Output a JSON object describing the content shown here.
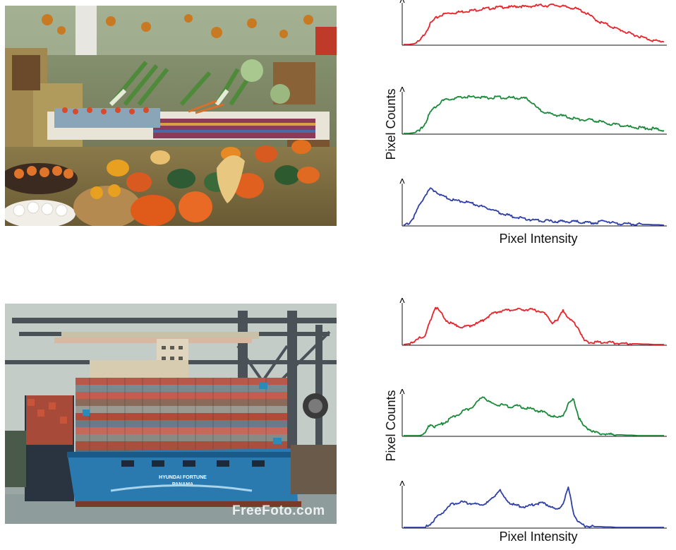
{
  "photos": [
    {
      "subject": "market-stall-produce",
      "watermark": ""
    },
    {
      "subject": "container-ship-port",
      "watermark": "FreeFoto.com",
      "ship_name": "HYUNDAI FORTUNE",
      "ship_port": "PANAMA"
    }
  ],
  "chart_data": [
    {
      "type": "line",
      "title": "",
      "xlabel": "Pixel Intensity",
      "ylabel": "Pixel Counts",
      "xlim": [
        0,
        255
      ],
      "ylim": [
        0,
        1
      ],
      "grid": false,
      "ticks": false,
      "series": [
        {
          "color": "#e8232a",
          "values": [
            0,
            0,
            0.02,
            0.08,
            0.28,
            0.52,
            0.66,
            0.74,
            0.78,
            0.8,
            0.81,
            0.83,
            0.85,
            0.86,
            0.88,
            0.9,
            0.91,
            0.93,
            0.94,
            0.95,
            0.94,
            0.96,
            0.97,
            0.95,
            0.97,
            0.98,
            0.99,
            0.98,
            1.0,
            0.99,
            0.96,
            0.94,
            0.92,
            0.88,
            0.82,
            0.74,
            0.64,
            0.56,
            0.52,
            0.46,
            0.4,
            0.36,
            0.3,
            0.26,
            0.22,
            0.18,
            0.14,
            0.1,
            0.08,
            0.08
          ]
        },
        {
          "color": "#1a8a3a",
          "values": [
            0,
            0,
            0.02,
            0.06,
            0.25,
            0.52,
            0.68,
            0.8,
            0.85,
            0.88,
            0.9,
            0.92,
            0.93,
            0.92,
            0.93,
            0.91,
            0.9,
            0.91,
            0.92,
            0.9,
            0.91,
            0.9,
            0.89,
            0.88,
            0.8,
            0.66,
            0.56,
            0.52,
            0.48,
            0.46,
            0.44,
            0.41,
            0.38,
            0.36,
            0.34,
            0.34,
            0.32,
            0.3,
            0.26,
            0.24,
            0.22,
            0.2,
            0.18,
            0.16,
            0.15,
            0.14,
            0.13,
            0.12,
            0.1,
            0.08
          ]
        },
        {
          "color": "#2f3fa8",
          "values": [
            0,
            0.06,
            0.22,
            0.52,
            0.75,
            0.92,
            0.86,
            0.76,
            0.7,
            0.64,
            0.62,
            0.6,
            0.58,
            0.55,
            0.5,
            0.46,
            0.42,
            0.38,
            0.32,
            0.28,
            0.24,
            0.2,
            0.18,
            0.16,
            0.14,
            0.13,
            0.12,
            0.11,
            0.1,
            0.1,
            0.09,
            0.09,
            0.1,
            0.08,
            0.07,
            0.06,
            0.06,
            0.08,
            0.12,
            0.07,
            0.05,
            0.04,
            0.04,
            0.03,
            0.03,
            0.02,
            0.02,
            0.01,
            0.01,
            0.0
          ]
        }
      ]
    },
    {
      "type": "line",
      "title": "",
      "xlabel": "Pixel Intensity",
      "ylabel": "Pixel Counts",
      "xlim": [
        0,
        255
      ],
      "ylim": [
        0,
        1
      ],
      "grid": false,
      "ticks": false,
      "series": [
        {
          "color": "#e8232a",
          "values": [
            0,
            0.02,
            0.05,
            0.2,
            0.18,
            0.6,
            0.96,
            0.8,
            0.62,
            0.52,
            0.48,
            0.44,
            0.46,
            0.5,
            0.54,
            0.62,
            0.72,
            0.8,
            0.84,
            0.86,
            0.87,
            0.88,
            0.88,
            0.89,
            0.88,
            0.86,
            0.84,
            0.72,
            0.56,
            0.6,
            0.88,
            0.66,
            0.55,
            0.4,
            0.08,
            0.06,
            0.05,
            0.06,
            0.07,
            0.05,
            0.04,
            0.03,
            0.03,
            0.02,
            0.02,
            0.01,
            0.01,
            0.0,
            0.0,
            0.0
          ]
        },
        {
          "color": "#1a8a3a",
          "values": [
            0,
            0,
            0.0,
            0.0,
            0.04,
            0.3,
            0.22,
            0.28,
            0.36,
            0.44,
            0.52,
            0.6,
            0.66,
            0.74,
            0.86,
            1.0,
            0.86,
            0.8,
            0.78,
            0.76,
            0.72,
            0.76,
            0.73,
            0.7,
            0.68,
            0.64,
            0.6,
            0.56,
            0.5,
            0.44,
            0.52,
            0.8,
            0.92,
            0.44,
            0.22,
            0.16,
            0.08,
            0.05,
            0.04,
            0.03,
            0.02,
            0.02,
            0.01,
            0.01,
            0.0,
            0.0,
            0.0,
            0.0,
            0.0,
            0.0
          ]
        },
        {
          "color": "#2f3fa8",
          "values": [
            0,
            0,
            0.0,
            0.0,
            0.0,
            0.08,
            0.22,
            0.34,
            0.46,
            0.58,
            0.62,
            0.64,
            0.62,
            0.6,
            0.58,
            0.6,
            0.64,
            0.78,
            0.96,
            0.74,
            0.62,
            0.56,
            0.54,
            0.52,
            0.56,
            0.6,
            0.62,
            0.58,
            0.5,
            0.44,
            0.6,
            1.0,
            0.36,
            0.12,
            0.04,
            0.03,
            0.02,
            0.02,
            0.01,
            0.01,
            0.0,
            0.0,
            0.0,
            0.0,
            0.0,
            0.0,
            0.0,
            0.0,
            0.0,
            0.0
          ]
        }
      ]
    }
  ]
}
